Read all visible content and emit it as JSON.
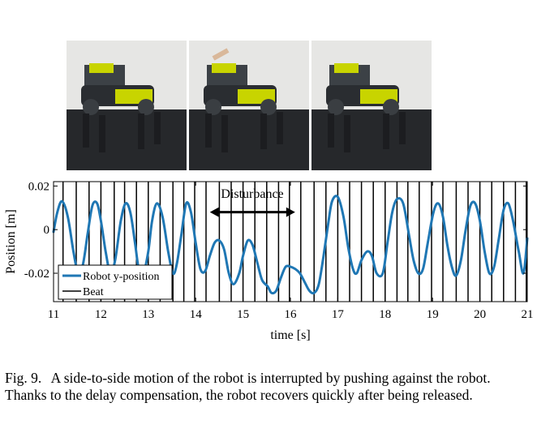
{
  "photos": [
    {
      "name": "robot-photo-before-push"
    },
    {
      "name": "robot-photo-during-push"
    },
    {
      "name": "robot-photo-after-push"
    }
  ],
  "caption": {
    "label": "Fig. 9.",
    "text": "A side-to-side motion of the robot is interrupted by pushing against the robot. Thanks to the delay compensation, the robot recovers quickly after being released."
  },
  "chart_data": {
    "type": "line",
    "xlabel": "time [s]",
    "ylabel": "Position [m]",
    "xlim": [
      11,
      21
    ],
    "ylim": [
      -0.033,
      0.022
    ],
    "xticks": [
      11,
      12,
      13,
      14,
      15,
      16,
      17,
      18,
      19,
      20,
      21
    ],
    "yticks": [
      0.02,
      0,
      -0.02
    ],
    "ytick_labels": [
      "0.02",
      "0",
      "-0.02"
    ],
    "grid": false,
    "legend_position": "bottom-left",
    "series": [
      {
        "name": "Robot y-position",
        "color": "#1f77b4",
        "x": [
          11.0,
          11.08,
          11.18,
          11.3,
          11.42,
          11.52,
          11.62,
          11.72,
          11.82,
          11.92,
          12.0,
          12.1,
          12.2,
          12.3,
          12.42,
          12.52,
          12.62,
          12.72,
          12.8,
          12.9,
          13.0,
          13.08,
          13.18,
          13.3,
          13.42,
          13.52,
          13.6,
          13.7,
          13.8,
          13.9,
          14.0,
          14.1,
          14.2,
          14.3,
          14.4,
          14.5,
          14.6,
          14.7,
          14.8,
          14.92,
          15.0,
          15.1,
          15.2,
          15.3,
          15.4,
          15.52,
          15.6,
          15.7,
          15.8,
          15.9,
          16.0,
          16.1,
          16.2,
          16.3,
          16.4,
          16.5,
          16.6,
          16.7,
          16.8,
          16.88,
          17.0,
          17.12,
          17.22,
          17.32,
          17.4,
          17.5,
          17.62,
          17.72,
          17.82,
          17.95,
          18.05,
          18.15,
          18.25,
          18.38,
          18.5,
          18.6,
          18.7,
          18.8,
          18.9,
          19.02,
          19.12,
          19.22,
          19.32,
          19.42,
          19.5,
          19.6,
          19.7,
          19.8,
          19.9,
          20.0,
          20.1,
          20.2,
          20.3,
          20.4,
          20.5,
          20.6,
          20.7,
          20.82,
          20.92,
          21.0
        ],
        "y": [
          -0.001,
          0.008,
          0.013,
          0.006,
          -0.01,
          -0.02,
          -0.016,
          -0.002,
          0.011,
          0.012,
          0.004,
          -0.01,
          -0.02,
          -0.014,
          0.004,
          0.012,
          0.008,
          -0.006,
          -0.018,
          -0.02,
          -0.01,
          0.004,
          0.012,
          0.006,
          -0.01,
          -0.02,
          -0.016,
          -0.002,
          0.012,
          0.008,
          -0.006,
          -0.018,
          -0.019,
          -0.012,
          -0.006,
          -0.005,
          -0.009,
          -0.02,
          -0.025,
          -0.02,
          -0.012,
          -0.005,
          -0.007,
          -0.015,
          -0.023,
          -0.026,
          -0.029,
          -0.028,
          -0.022,
          -0.017,
          -0.017,
          -0.018,
          -0.02,
          -0.024,
          -0.028,
          -0.029,
          -0.025,
          -0.012,
          0.003,
          0.013,
          0.015,
          0.006,
          -0.008,
          -0.018,
          -0.02,
          -0.014,
          -0.01,
          -0.012,
          -0.02,
          -0.02,
          -0.006,
          0.008,
          0.014,
          0.012,
          -0.002,
          -0.014,
          -0.02,
          -0.018,
          -0.006,
          0.008,
          0.012,
          0.006,
          -0.008,
          -0.018,
          -0.021,
          -0.014,
          0.0,
          0.011,
          0.012,
          0.004,
          -0.01,
          -0.02,
          -0.017,
          -0.004,
          0.009,
          0.012,
          0.004,
          -0.01,
          -0.02,
          -0.004
        ]
      },
      {
        "name": "Beat",
        "color": "#000000",
        "beat_times": [
          11.2,
          11.48,
          11.75,
          12.0,
          12.28,
          12.5,
          12.75,
          13.0,
          13.25,
          13.52,
          13.75,
          13.98,
          14.22,
          14.5,
          14.75,
          15.0,
          15.25,
          15.5,
          15.75,
          15.98,
          16.22,
          16.5,
          16.75,
          17.0,
          17.25,
          17.5,
          17.75,
          18.0,
          18.25,
          18.48,
          18.72,
          18.98,
          19.22,
          19.5,
          19.75,
          20.0,
          20.25,
          20.5,
          20.75,
          20.98
        ]
      }
    ],
    "annotations": [
      {
        "text": "Disturbance",
        "arrow_from": 14.3,
        "arrow_to": 16.1,
        "y": 0.008
      }
    ]
  }
}
